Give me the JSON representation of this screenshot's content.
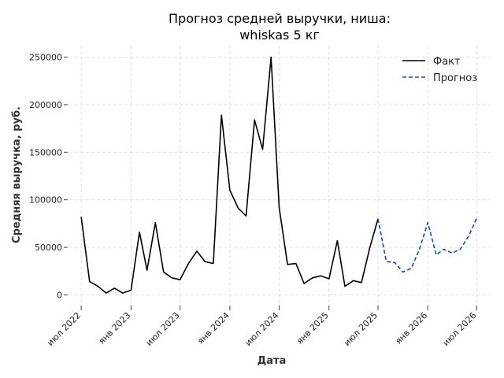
{
  "chart_data": {
    "type": "line",
    "title": [
      "Прогноз средней выручки, ниша:",
      "whiskas 5 кг"
    ],
    "xlabel": "Дата",
    "ylabel": "Средняя выручка, руб.",
    "ylim": [
      -12000,
      262000
    ],
    "yticks": [
      0,
      50000,
      100000,
      150000,
      200000,
      250000
    ],
    "ytick_labels": [
      "0",
      "50000",
      "100000",
      "150000",
      "200000",
      "250000"
    ],
    "xlim": [
      "2022-05-18",
      "2026-08-18"
    ],
    "xticks": [
      "2022-07-01",
      "2023-01-01",
      "2023-07-01",
      "2024-01-01",
      "2024-07-01",
      "2025-01-01",
      "2025-07-01",
      "2026-01-01",
      "2026-07-01"
    ],
    "xtick_labels": [
      "июл 2022",
      "янв 2023",
      "июл 2023",
      "янв 2024",
      "июл 2024",
      "янв 2025",
      "июл 2025",
      "янв 2026",
      "июл 2026"
    ],
    "grid": true,
    "legend_position": "top-right",
    "series": [
      {
        "name": "Факт",
        "color": "#000000",
        "style": "solid",
        "x": [
          "2022-07-01",
          "2022-08-01",
          "2022-09-01",
          "2022-10-01",
          "2022-11-01",
          "2022-12-01",
          "2023-01-01",
          "2023-02-01",
          "2023-03-01",
          "2023-04-01",
          "2023-05-01",
          "2023-06-01",
          "2023-07-01",
          "2023-08-01",
          "2023-09-01",
          "2023-10-01",
          "2023-11-01",
          "2023-12-01",
          "2024-01-01",
          "2024-02-01",
          "2024-03-01",
          "2024-04-01",
          "2024-05-01",
          "2024-06-01",
          "2024-07-01",
          "2024-08-01",
          "2024-09-01",
          "2024-10-01",
          "2024-11-01",
          "2024-12-01",
          "2025-01-01",
          "2025-02-01",
          "2025-03-01",
          "2025-04-01",
          "2025-05-01",
          "2025-06-01",
          "2025-07-01"
        ],
        "y": [
          82000,
          14000,
          9000,
          2000,
          7000,
          2000,
          5000,
          66000,
          26000,
          76000,
          24000,
          18000,
          16000,
          33000,
          46000,
          35000,
          33000,
          189000,
          110000,
          91000,
          83000,
          184000,
          153000,
          250000,
          92000,
          32000,
          33000,
          12000,
          18000,
          20000,
          17000,
          57000,
          9000,
          15000,
          13000,
          50000,
          80000
        ]
      },
      {
        "name": "Прогноз",
        "color": "#0b49d1",
        "style": "dashed",
        "x": [
          "2025-07-01",
          "2025-08-01",
          "2025-09-01",
          "2025-10-01",
          "2025-11-01",
          "2025-12-01",
          "2026-01-01",
          "2026-02-01",
          "2026-03-01",
          "2026-04-01",
          "2026-05-01",
          "2026-06-01",
          "2026-07-01"
        ],
        "y": [
          80000,
          35000,
          34000,
          24000,
          28000,
          48000,
          76000,
          42000,
          48000,
          44000,
          48000,
          62000,
          81000
        ]
      }
    ]
  }
}
